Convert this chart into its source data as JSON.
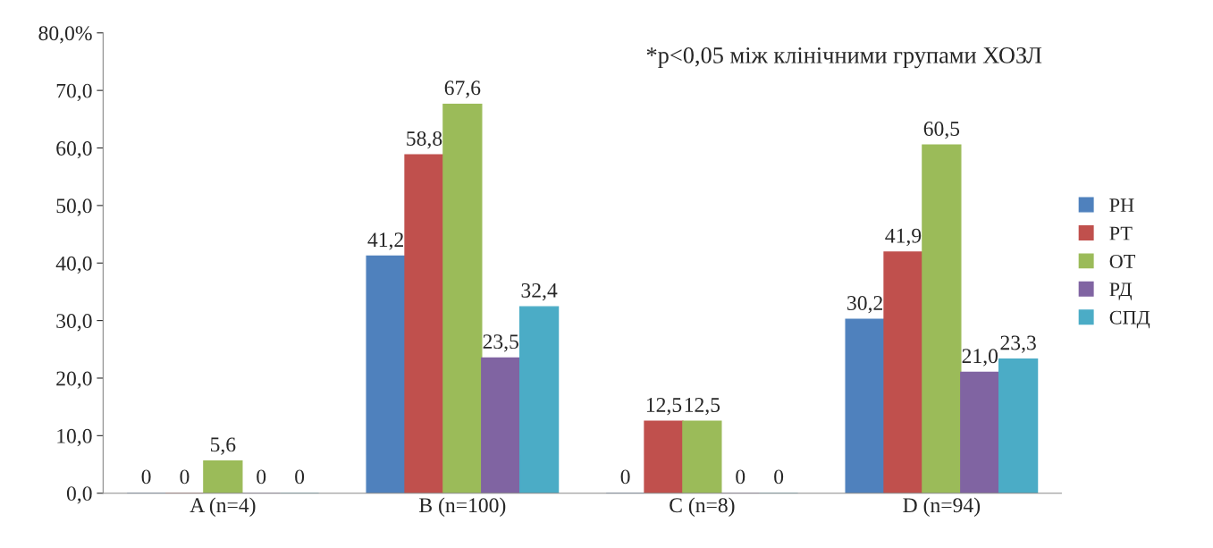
{
  "chart_data": {
    "type": "bar",
    "categories": [
      "A (n=4)",
      "B (n=100)",
      "C (n=8)",
      "D (n=94)"
    ],
    "series": [
      {
        "name": "РН",
        "color": "#4f81bd",
        "values": [
          0,
          41.2,
          0,
          30.2
        ],
        "value_labels": [
          "0",
          "41,2",
          "0",
          "30,2"
        ]
      },
      {
        "name": "РТ",
        "color": "#c0504d",
        "values": [
          0,
          58.8,
          12.5,
          41.9
        ],
        "value_labels": [
          "0",
          "58,8",
          "12,5",
          "41,9"
        ]
      },
      {
        "name": "ОТ",
        "color": "#9bbb59",
        "values": [
          5.6,
          67.6,
          12.5,
          60.5
        ],
        "value_labels": [
          "5,6",
          "67,6",
          "12,5",
          "60,5"
        ]
      },
      {
        "name": "РД",
        "color": "#8064a2",
        "values": [
          0,
          23.5,
          0,
          21.0
        ],
        "value_labels": [
          "0",
          "23,5",
          "0",
          "21,0"
        ]
      },
      {
        "name": "СПД",
        "color": "#4bacc6",
        "values": [
          0,
          32.4,
          0,
          23.3
        ],
        "value_labels": [
          "0",
          "32,4",
          "0",
          "23,3"
        ]
      }
    ],
    "ylim": [
      0,
      80
    ],
    "yticks": [
      {
        "value": 0,
        "label": "0,0"
      },
      {
        "value": 10,
        "label": "10,0"
      },
      {
        "value": 20,
        "label": "20,0"
      },
      {
        "value": 30,
        "label": "30,0"
      },
      {
        "value": 40,
        "label": "40,0"
      },
      {
        "value": 50,
        "label": "50,0"
      },
      {
        "value": 60,
        "label": "60,0"
      },
      {
        "value": 70,
        "label": "70,0"
      },
      {
        "value": 80,
        "label": "80,0%"
      }
    ],
    "annotations": [
      "*p<0,05 між клінічними групами ХОЗЛ"
    ],
    "grid": false,
    "legend": "right"
  }
}
